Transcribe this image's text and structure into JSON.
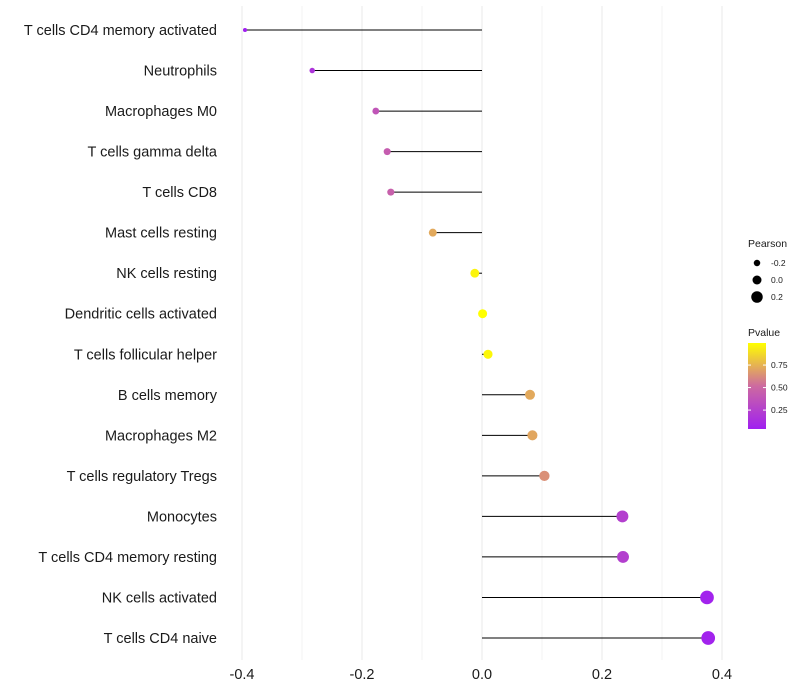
{
  "chart_data": {
    "type": "lollipop",
    "title": "",
    "xlabel": "",
    "ylabel": "",
    "xlim": [
      -0.4,
      0.4
    ],
    "xticks": [
      -0.4,
      -0.2,
      0.0,
      0.2,
      0.4
    ],
    "xtick_labels": [
      "-0.4",
      "-0.2",
      "0.0",
      "0.2",
      "0.4"
    ],
    "grid": true,
    "baseline": 0.0,
    "categories": [
      "T cells CD4 memory activated",
      "Neutrophils",
      "Macrophages M0",
      "T cells gamma delta",
      "T cells CD8",
      "Mast cells resting",
      "NK cells resting",
      "Dendritic cells activated",
      "T cells follicular helper",
      "B cells memory",
      "Macrophages M2",
      "T cells regulatory  Tregs ",
      "Monocytes",
      "T cells CD4 memory resting",
      "NK cells activated",
      "T cells CD4 naive"
    ],
    "pearson": [
      -0.395,
      -0.283,
      -0.177,
      -0.158,
      -0.152,
      -0.082,
      -0.012,
      0.001,
      0.01,
      0.08,
      0.084,
      0.104,
      0.234,
      0.235,
      0.375,
      0.377
    ],
    "pvalue": [
      0.04,
      0.17,
      0.38,
      0.43,
      0.45,
      0.72,
      0.96,
      0.995,
      0.97,
      0.72,
      0.71,
      0.64,
      0.24,
      0.24,
      0.06,
      0.06
    ],
    "legend_size": {
      "title": "Pearson",
      "labels": [
        "-0.2",
        "0.0",
        "0.2"
      ],
      "values": [
        -0.2,
        0.0,
        0.2
      ]
    },
    "legend_color": {
      "title": "Pvalue",
      "labels": [
        "0.75",
        "0.50",
        "0.25"
      ],
      "values": [
        0.75,
        0.5,
        0.25
      ],
      "range": [
        0.04,
        0.995
      ]
    },
    "colors": {
      "low": "#a020f0",
      "mid": "#cd6aa0",
      "high": "#ffff00",
      "grid": "#ebebeb",
      "segment": "#000000"
    }
  }
}
